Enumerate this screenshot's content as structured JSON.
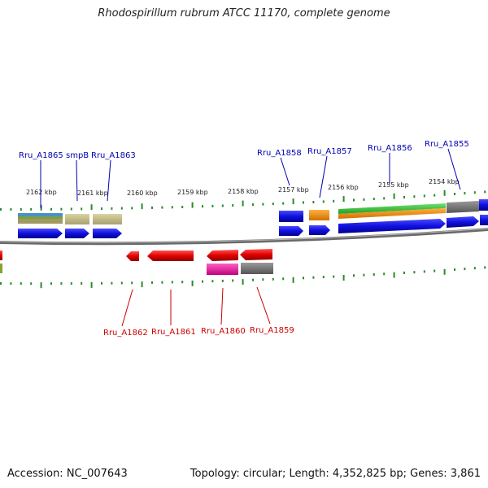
{
  "title": "Rhodospirillum rubrum ATCC 11170, complete genome",
  "accession": "Accession: NC_007643",
  "summary": "Topology: circular; Length: 4,352,825 bp; Genes: 3,861",
  "scale_labels": [
    "2162 kbp",
    "2161 kbp",
    "2160 kbp",
    "2159 kbp",
    "2158 kbp",
    "2157 kbp",
    "2156 kbp",
    "2155 kbp",
    "2154 kbp"
  ],
  "genes_top": [
    "Rru_A1865",
    "smpB",
    "Rru_A1863",
    "Rru_A1858",
    "Rru_A1857",
    "Rru_A1856",
    "Rru_A1855"
  ],
  "genes_bottom": [
    "Rru_A1862",
    "Rru_A1861",
    "Rru_A1860",
    "Rru_A1859"
  ],
  "colors": {
    "forward_gene": "#1010e0",
    "reverse_gene": "#e00000",
    "top_label": "#0000b0",
    "bottom_label": "#cc0000",
    "backbone": "#8a8a8a",
    "ticks": "#2a8a2a"
  }
}
